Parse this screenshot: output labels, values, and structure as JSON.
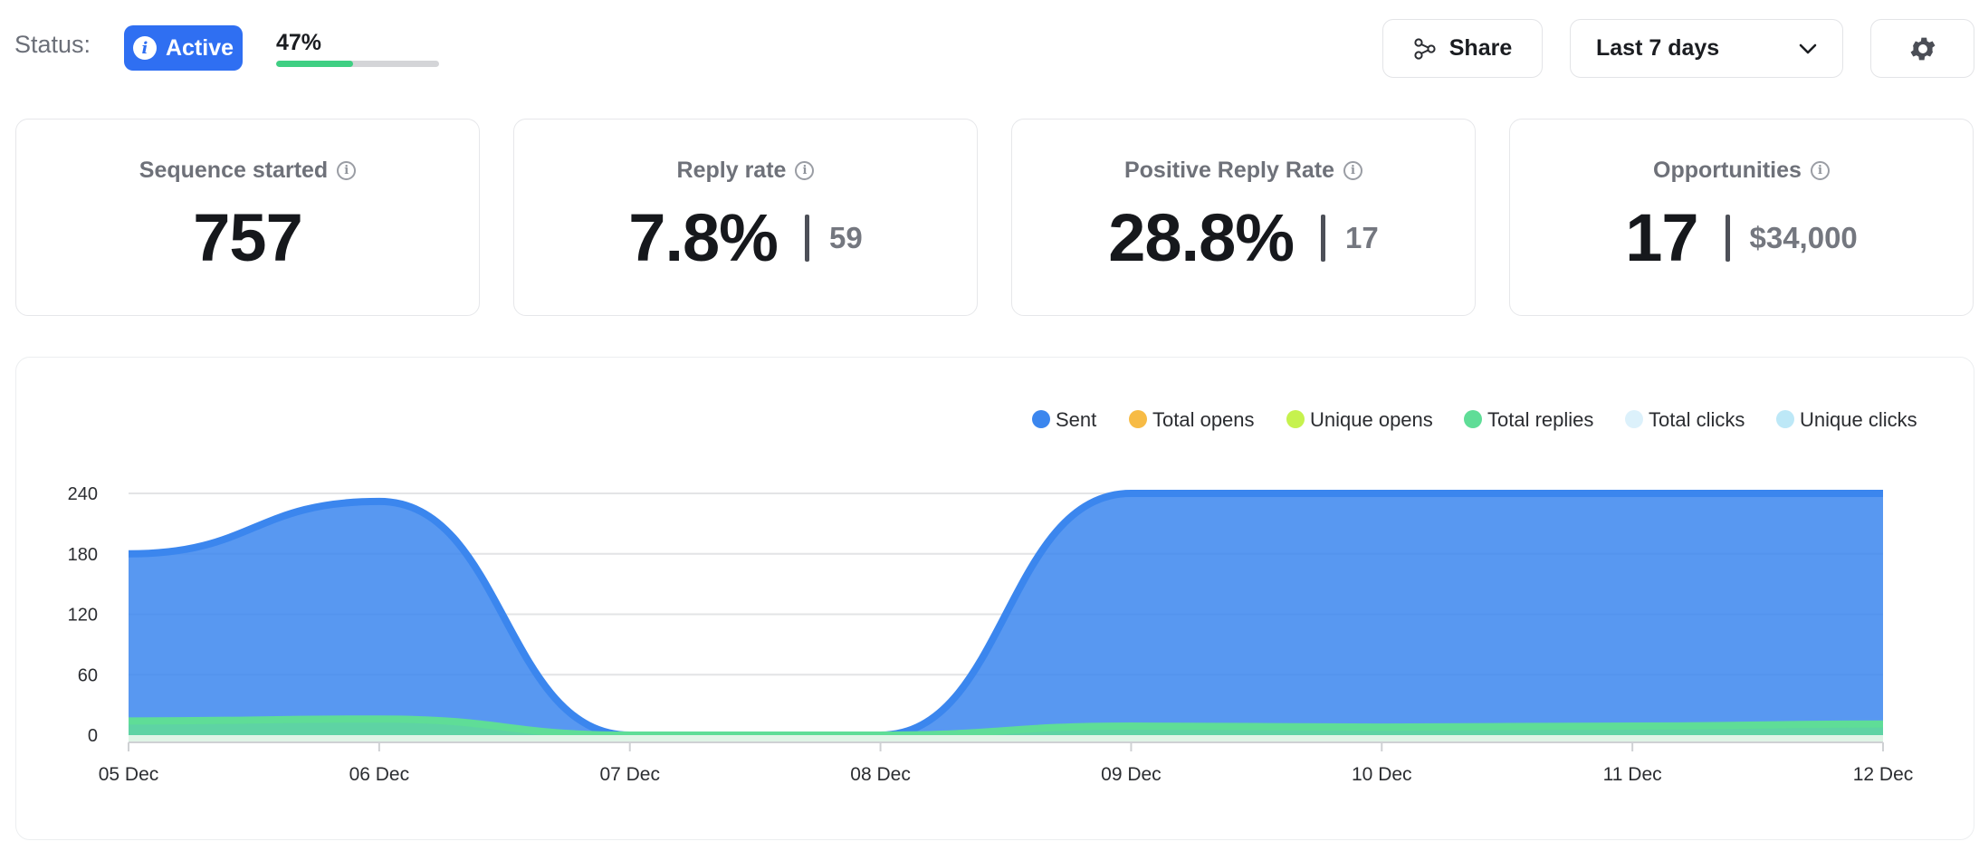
{
  "header": {
    "status_label": "Status:",
    "status_value": "Active",
    "progress_text": "47%",
    "progress_value": 47,
    "share_label": "Share",
    "date_range": "Last 7 days"
  },
  "icons": {
    "status": "info-icon",
    "share": "share-icon",
    "dropdown": "chevron-down-icon",
    "settings": "gear-icon",
    "card_info": "info-circle-icon"
  },
  "colors": {
    "accent": "#2f6ff2",
    "progress": "#3fcf83"
  },
  "metrics": [
    {
      "title": "Sequence started",
      "value": "757",
      "secondary": ""
    },
    {
      "title": "Reply rate",
      "value": "7.8%",
      "secondary": "59"
    },
    {
      "title": "Positive Reply Rate",
      "value": "28.8%",
      "secondary": "17"
    },
    {
      "title": "Opportunities",
      "value": "17",
      "secondary": "$34,000"
    }
  ],
  "chart_data": {
    "type": "area",
    "title": "",
    "xlabel": "",
    "ylabel": "",
    "categories": [
      "05 Dec",
      "06 Dec",
      "07 Dec",
      "08 Dec",
      "09 Dec",
      "10 Dec",
      "11 Dec",
      "12 Dec"
    ],
    "ylim": [
      0,
      240
    ],
    "yticks": [
      "0",
      "60",
      "120",
      "180",
      "240"
    ],
    "grid": true,
    "legend_position": "top-right",
    "series": [
      {
        "name": "Sent",
        "color": "#3b86ee",
        "values": [
          180,
          232,
          0,
          0,
          240,
          240,
          240,
          240
        ]
      },
      {
        "name": "Total opens",
        "color": "#f7bb45",
        "values": [
          0,
          0,
          0,
          0,
          0,
          0,
          0,
          0
        ]
      },
      {
        "name": "Unique opens",
        "color": "#c6f24e",
        "values": [
          0,
          0,
          0,
          0,
          0,
          0,
          0,
          0
        ]
      },
      {
        "name": "Total replies",
        "color": "#5fdd97",
        "values": [
          14,
          16,
          0,
          0,
          9,
          8,
          9,
          11
        ]
      },
      {
        "name": "Total clicks",
        "color": "#dcf1fb",
        "values": [
          0,
          0,
          0,
          0,
          0,
          0,
          0,
          0
        ]
      },
      {
        "name": "Unique clicks",
        "color": "#bde8f7",
        "values": [
          0,
          0,
          0,
          0,
          0,
          0,
          0,
          0
        ]
      }
    ]
  }
}
